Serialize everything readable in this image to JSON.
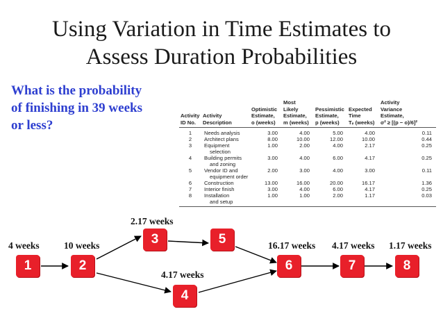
{
  "slide": {
    "title_line1": "Using Variation in Time Estimates to",
    "title_line2": "Assess Duration Probabilities",
    "question_line1": "What is the probability",
    "question_line2": "of finishing in 39 weeks",
    "question_line3": "or less?"
  },
  "table": {
    "headers": {
      "id": [
        "Activity",
        "ID No."
      ],
      "desc": [
        "Activity",
        "Description"
      ],
      "opt": [
        "Optimistic",
        "Estimate,",
        "o (weeks)"
      ],
      "likely": [
        "Most",
        "Likely",
        "Estimate,",
        "m (weeks)"
      ],
      "pess": [
        "Pessimistic",
        "Estimate,",
        "p (weeks)"
      ],
      "exp": [
        "Expected",
        "Time",
        "Tₑ (weeks)"
      ],
      "var": [
        "Activity",
        "Variance",
        "Estimate,",
        "σ² ≥ [(p − o)/6]²"
      ]
    },
    "rows": [
      {
        "id": "1",
        "desc": "Needs analysis",
        "desc2": "",
        "o": "3.00",
        "m": "4.00",
        "p": "5.00",
        "te": "4.00",
        "var": "0.11"
      },
      {
        "id": "2",
        "desc": "Architect plans",
        "desc2": "",
        "o": "8.00",
        "m": "10.00",
        "p": "12.00",
        "te": "10.00",
        "var": "0.44"
      },
      {
        "id": "3",
        "desc": "Equipment",
        "desc2": "selection",
        "o": "1.00",
        "m": "2.00",
        "p": "4.00",
        "te": "2.17",
        "var": "0.25"
      },
      {
        "id": "4",
        "desc": "Building permits",
        "desc2": "and zoning",
        "o": "3.00",
        "m": "4.00",
        "p": "6.00",
        "te": "4.17",
        "var": "0.25"
      },
      {
        "id": "5",
        "desc": "Vendor ID and",
        "desc2": "equipment order",
        "o": "2.00",
        "m": "3.00",
        "p": "4.00",
        "te": "3.00",
        "var": "0.11"
      },
      {
        "id": "6",
        "desc": "Construction",
        "desc2": "",
        "o": "13.00",
        "m": "16.00",
        "p": "20.00",
        "te": "16.17",
        "var": "1.36"
      },
      {
        "id": "7",
        "desc": "Interior finish",
        "desc2": "",
        "o": "3.00",
        "m": "4.00",
        "p": "6.00",
        "te": "4.17",
        "var": "0.25"
      },
      {
        "id": "8",
        "desc": "Installation",
        "desc2": "and setup",
        "o": "1.00",
        "m": "1.00",
        "p": "2.00",
        "te": "1.17",
        "var": "0.03"
      }
    ]
  },
  "network": {
    "nodes": {
      "n1": "1",
      "n2": "2",
      "n3": "3",
      "n4": "4",
      "n5": "5",
      "n6": "6",
      "n7": "7",
      "n8": "8"
    },
    "durations": {
      "d1": "4 weeks",
      "d2": "10 weeks",
      "d3": "2.17 weeks",
      "d4": "4.17 weeks",
      "d6": "16.17 weeks",
      "d7": "4.17 weeks",
      "d8": "1.17 weeks"
    },
    "colors": {
      "node_fill": "#e8202a",
      "node_text": "#ffffff",
      "arrow": "#000000",
      "question": "#2e3fd0"
    }
  }
}
